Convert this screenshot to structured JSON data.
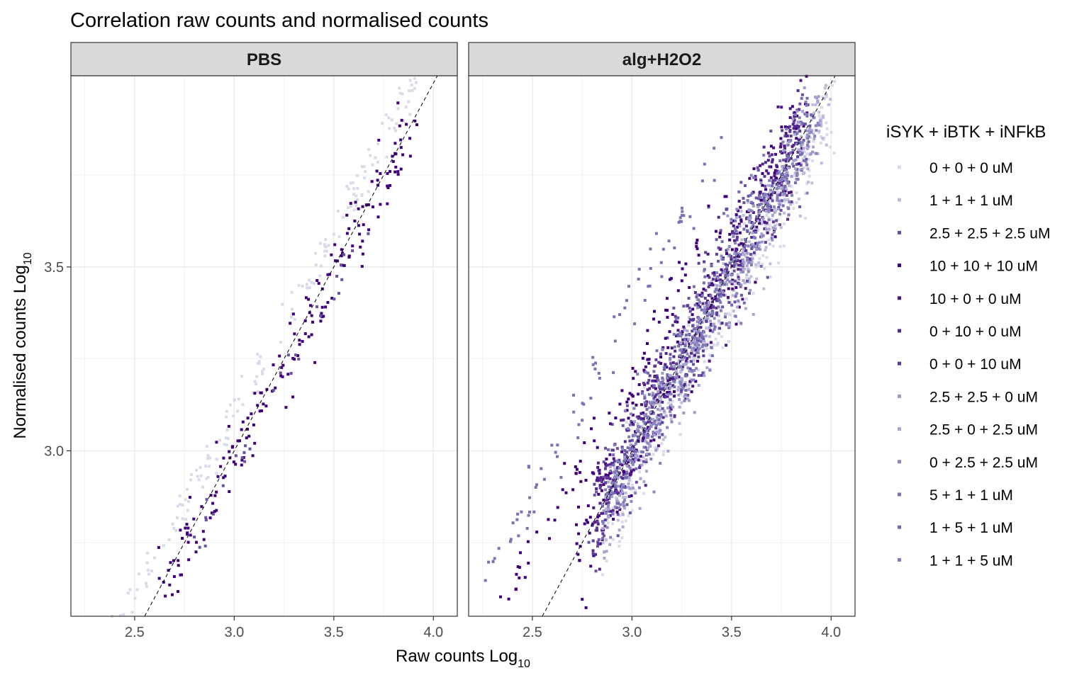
{
  "chart_data": {
    "type": "scatter",
    "title": "Correlation raw counts and normalised counts",
    "xlabel": "Raw counts Log",
    "xlabel_sub": "10",
    "ylabel": "Normalised counts Log",
    "ylabel_sub": "10",
    "xlim": [
      2.18,
      4.12
    ],
    "ylim": [
      2.55,
      4.02
    ],
    "x_ticks": [
      2.5,
      3.0,
      3.5,
      4.0
    ],
    "x_tick_labels": [
      "2.5",
      "3.0",
      "3.5",
      "4.0"
    ],
    "y_ticks": [
      3.0,
      3.5
    ],
    "y_tick_labels": [
      "3.0",
      "3.5"
    ],
    "grid": true,
    "reference_line": {
      "type": "identity",
      "style": "dashed",
      "color": "#000000"
    },
    "legend": {
      "title": "iSYK + iBTK + iNFkB",
      "position": "right",
      "entries": [
        {
          "label": "0 + 0 + 0 uM",
          "color": "#dadaeb"
        },
        {
          "label": "1 + 1 + 1 uM",
          "color": "#bcbddc"
        },
        {
          "label": "2.5 + 2.5 + 2.5 uM",
          "color": "#6a51a3"
        },
        {
          "label": "10 + 10 + 10 uM",
          "color": "#3f007d"
        },
        {
          "label": "10 + 0 + 0 uM",
          "color": "#4a1486"
        },
        {
          "label": "0 + 10 + 0 uM",
          "color": "#54278f"
        },
        {
          "label": "0 + 0 + 10 uM",
          "color": "#5e3c99"
        },
        {
          "label": "2.5 + 2.5 + 0 uM",
          "color": "#9e9ac8"
        },
        {
          "label": "2.5 + 0 + 2.5 uM",
          "color": "#a9a5d0"
        },
        {
          "label": "0 + 2.5 + 2.5 uM",
          "color": "#8c86c0"
        },
        {
          "label": "5 + 1 + 1 uM",
          "color": "#7b73b3"
        },
        {
          "label": "1 + 5 + 1 uM",
          "color": "#756bb1"
        },
        {
          "label": "1 + 1 + 5 uM",
          "color": "#807dba"
        }
      ]
    },
    "facets": [
      {
        "name": "PBS",
        "groups": [
          {
            "legend_index": 0,
            "x_min": 2.38,
            "x_max": 3.92,
            "offset": 0.1,
            "spread": 0.03,
            "n": 170
          },
          {
            "legend_index": 3,
            "x_min": 2.62,
            "x_max": 3.92,
            "offset": -0.02,
            "spread": 0.05,
            "n": 190
          },
          {
            "legend_index": 2,
            "x_min": 2.78,
            "x_max": 3.72,
            "offset": -0.06,
            "spread": 0.03,
            "n": 30
          }
        ]
      },
      {
        "name": "alg+H2O2",
        "groups": [
          {
            "legend_index": 10,
            "x_min": 2.26,
            "x_max": 3.45,
            "offset": 0.38,
            "spread": 0.04,
            "n": 80
          },
          {
            "legend_index": 3,
            "x_min": 2.27,
            "x_max": 3.48,
            "offset": 0.22,
            "spread": 0.04,
            "n": 70
          },
          {
            "legend_index": 0,
            "x_min": 2.85,
            "x_max": 4.02,
            "offset": -0.08,
            "spread": 0.06,
            "n": 260
          },
          {
            "legend_index": 1,
            "x_min": 2.85,
            "x_max": 4.0,
            "offset": -0.05,
            "spread": 0.06,
            "n": 240
          },
          {
            "legend_index": 2,
            "x_min": 2.78,
            "x_max": 3.9,
            "offset": 0.0,
            "spread": 0.08,
            "n": 220
          },
          {
            "legend_index": 3,
            "x_min": 2.72,
            "x_max": 3.88,
            "offset": 0.03,
            "spread": 0.08,
            "n": 200
          },
          {
            "legend_index": 4,
            "x_min": 2.8,
            "x_max": 3.85,
            "offset": 0.02,
            "spread": 0.07,
            "n": 180
          },
          {
            "legend_index": 5,
            "x_min": 2.8,
            "x_max": 3.85,
            "offset": 0.01,
            "spread": 0.07,
            "n": 180
          },
          {
            "legend_index": 6,
            "x_min": 2.8,
            "x_max": 3.85,
            "offset": 0.0,
            "spread": 0.07,
            "n": 180
          },
          {
            "legend_index": 7,
            "x_min": 2.85,
            "x_max": 3.95,
            "offset": -0.03,
            "spread": 0.06,
            "n": 160
          },
          {
            "legend_index": 8,
            "x_min": 2.85,
            "x_max": 3.95,
            "offset": -0.04,
            "spread": 0.06,
            "n": 160
          },
          {
            "legend_index": 9,
            "x_min": 2.85,
            "x_max": 3.95,
            "offset": -0.02,
            "spread": 0.06,
            "n": 160
          },
          {
            "legend_index": 11,
            "x_min": 2.85,
            "x_max": 3.9,
            "offset": 0.0,
            "spread": 0.07,
            "n": 140
          },
          {
            "legend_index": 12,
            "x_min": 2.85,
            "x_max": 3.9,
            "offset": 0.01,
            "spread": 0.07,
            "n": 140
          }
        ]
      }
    ]
  }
}
